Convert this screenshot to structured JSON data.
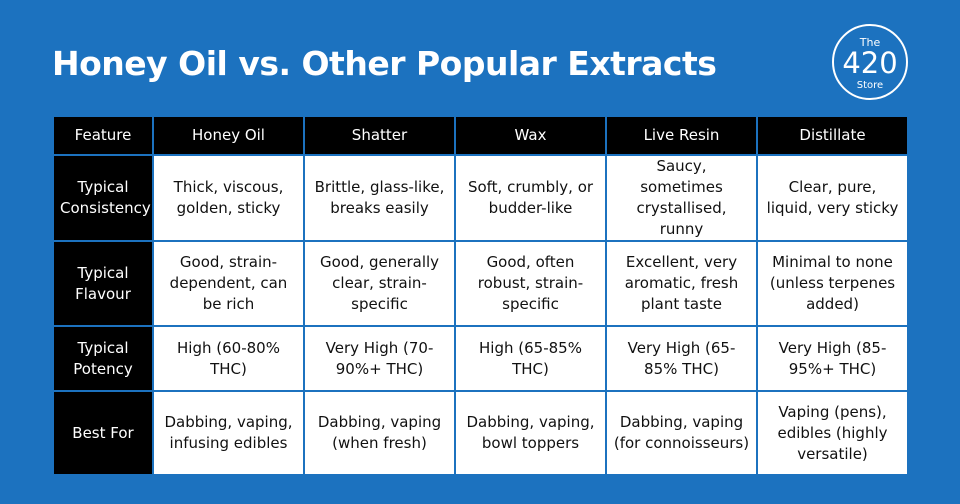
{
  "header": {
    "title": "Honey Oil vs. Other Popular Extracts"
  },
  "logo": {
    "top": "The",
    "number": "420",
    "bottom": "Store"
  },
  "table": {
    "columns": [
      "Feature",
      "Honey Oil",
      "Shatter",
      "Wax",
      "Live Resin",
      "Distillate"
    ],
    "rows": [
      [
        "Typical Consistency",
        "Thick, viscous, golden, sticky",
        "Brittle, glass-like, breaks easily",
        "Soft, crumbly, or budder-like",
        "Saucy, sometimes crystallised, runny",
        "Clear, pure, liquid, very sticky"
      ],
      [
        "Typical Flavour",
        "Good, strain-dependent, can be rich",
        "Good, generally clear, strain-specific",
        "Good, often robust, strain-specific",
        "Excellent, very aromatic, fresh plant taste",
        "Minimal to none (unless terpenes added)"
      ],
      [
        "Typical Potency",
        "High (60-80% THC)",
        "Very High (70-90%+ THC)",
        "High (65-85% THC)",
        "Very High (65-85% THC)",
        "Very High (85-95%+ THC)"
      ],
      [
        "Best For",
        "Dabbing, vaping, infusing edibles",
        "Dabbing, vaping (when fresh)",
        "Dabbing, vaping, bowl toppers",
        "Dabbing, vaping (for connoisseurs)",
        "Vaping (pens), edibles (highly versatile)"
      ]
    ]
  }
}
